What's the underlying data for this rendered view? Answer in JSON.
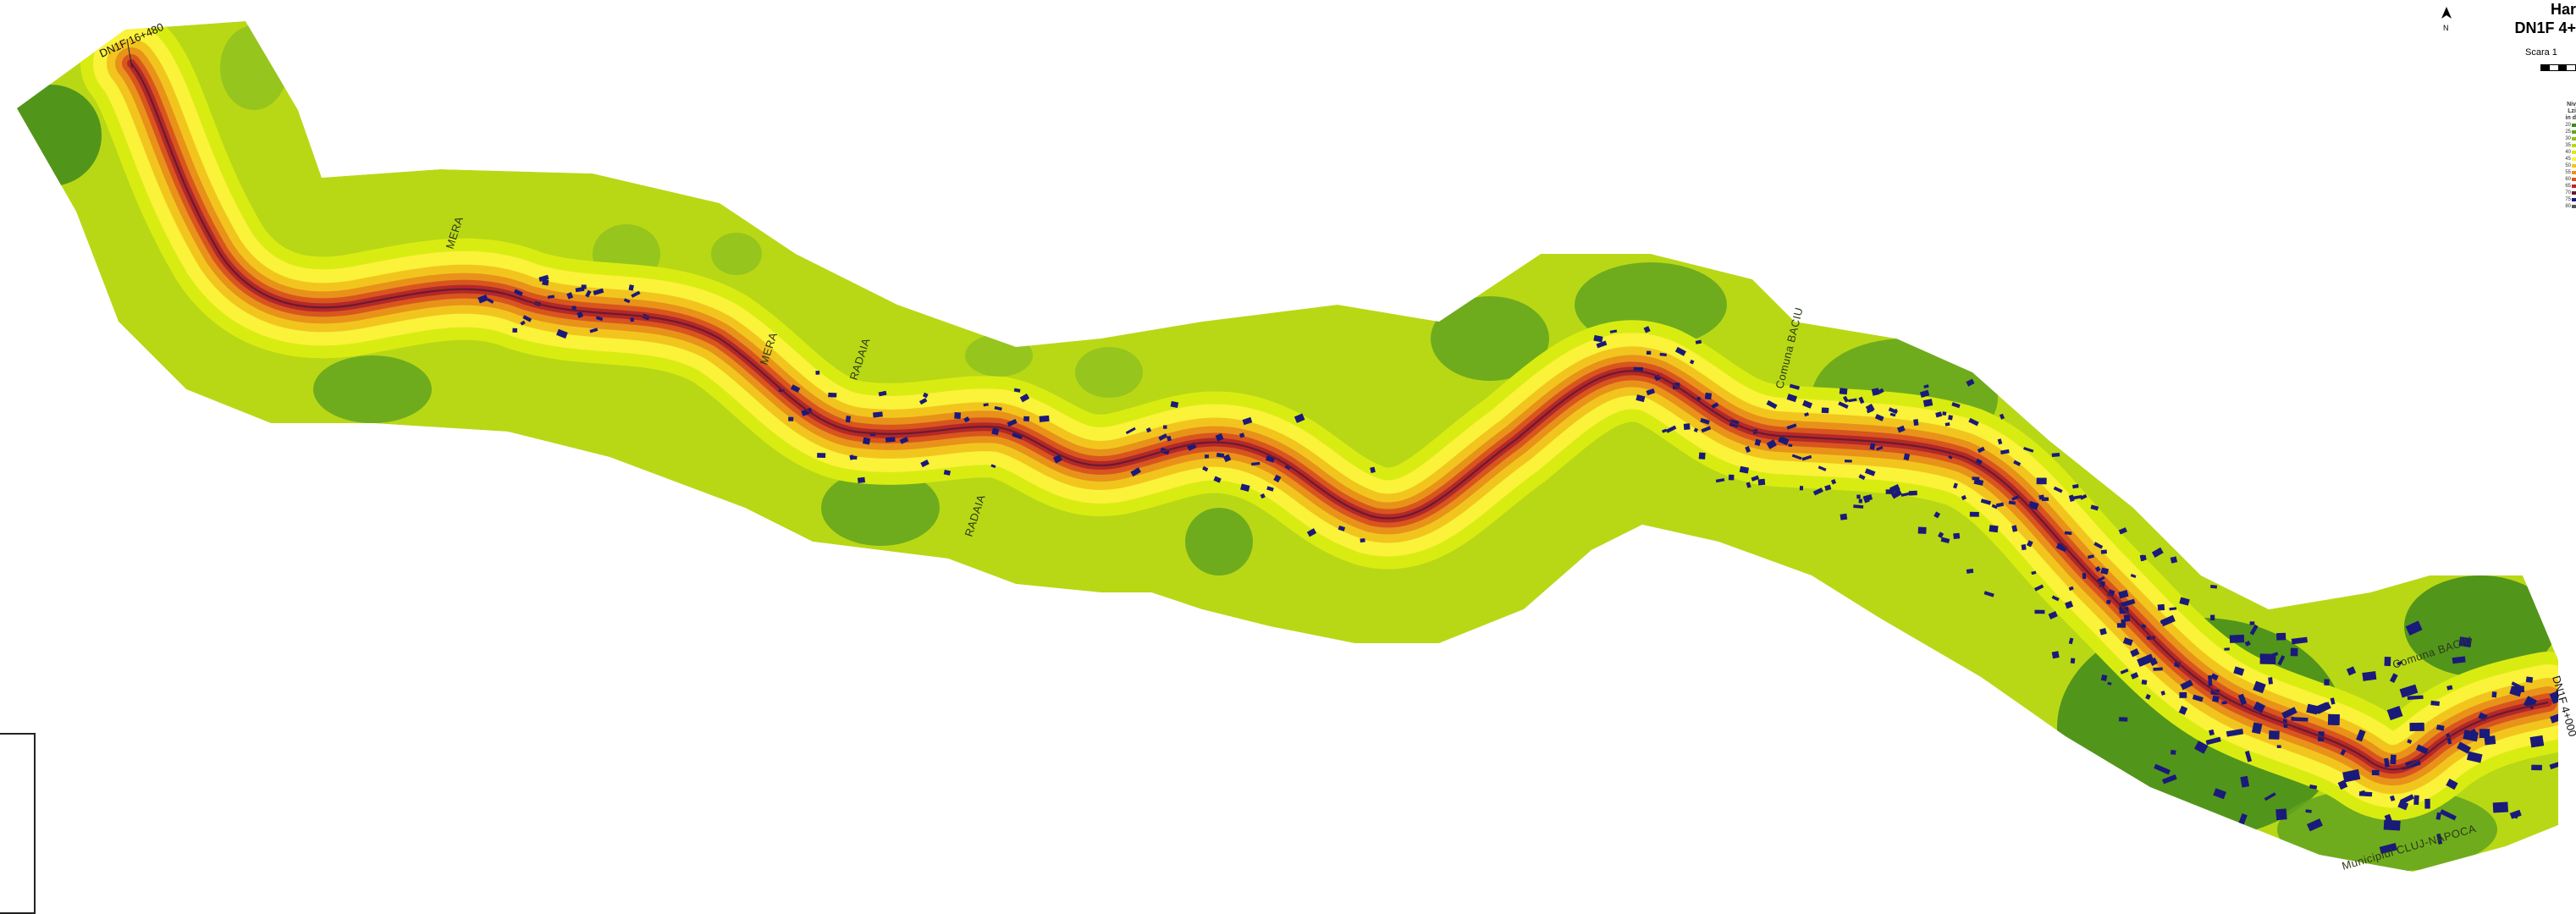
{
  "map": {
    "kind": "noise contour map along road corridor",
    "labels": [
      {
        "key": "start_chainage",
        "text": "DN1F 16+480"
      },
      {
        "key": "end_chainage",
        "text": "DN1F 4+000"
      },
      {
        "key": "loc1",
        "text": "MERA"
      },
      {
        "key": "loc2",
        "text": "MERA"
      },
      {
        "key": "loc3",
        "text": "RADAIA"
      },
      {
        "key": "loc4",
        "text": "RADAIA"
      },
      {
        "key": "loc5",
        "text": "Comuna BACIU"
      },
      {
        "key": "loc6",
        "text": "Comuna BACIU"
      },
      {
        "key": "loc7",
        "text": "Municipiul CLUJ-NAPOCA"
      }
    ],
    "colors": {
      "band_outer": "#3f8a1c",
      "band_2": "#62a51e",
      "band_3": "#8fc21e",
      "band_4": "#b8d816",
      "band_5": "#d9ec12",
      "band_6": "#fbf23a",
      "band_7": "#f2c51e",
      "band_8": "#e8921a",
      "band_9": "#d8561e",
      "band_road": "#b42828",
      "road_line": "#6a1a30",
      "buildings": "#1a1a7a"
    }
  },
  "title": {
    "line1": "Har",
    "line2": "DN1F 4+",
    "scale": "Scara 1"
  },
  "legend": {
    "title_lines": [
      "Niv",
      "Lzi",
      "in d"
    ],
    "rows": [
      "20",
      "25",
      "30",
      "35",
      "40",
      "45",
      "50",
      "55",
      "60",
      "65",
      "70",
      "75",
      "80"
    ]
  }
}
